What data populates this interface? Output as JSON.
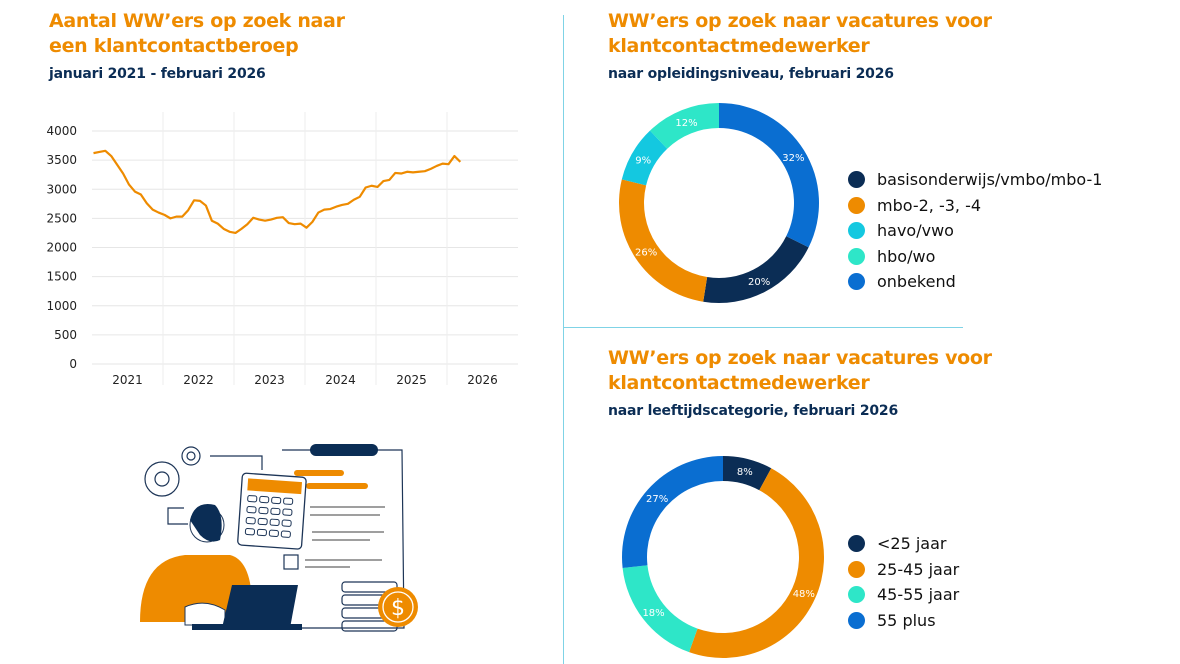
{
  "colors": {
    "orange": "#EE8B00",
    "navy": "#0B2D55",
    "blue": "#0A6ED1",
    "cyan": "#14C8E0",
    "teal": "#2EE6C8"
  },
  "left": {
    "title_line1": "Aantal WW’ers op zoek naar",
    "title_line2": "een klantcontactberoep",
    "subtitle": "januari 2021 - februari 2026"
  },
  "right_top": {
    "title_line1": "WW’ers op zoek naar vacatures voor",
    "title_line2": "klantcontactmedewerker",
    "subtitle": "naar opleidingsniveau, februari 2026"
  },
  "right_bottom": {
    "title_line1": "WW’ers op zoek naar vacatures voor",
    "title_line2": "klantcontactmedewerker",
    "subtitle": "naar leeftijdscategorie, februari 2026"
  },
  "illustration": "person-with-calculator-laptop-document-coins",
  "chart_data": [
    {
      "type": "line",
      "title": "Aantal WW’ers op zoek naar een klantcontactberoep",
      "x_start": "2021-01",
      "x_step": "month",
      "ylim": [
        0,
        4000
      ],
      "yticks": [
        0,
        500,
        1000,
        1500,
        2000,
        2500,
        3000,
        3500,
        4000
      ],
      "xticks": [
        "2021",
        "2022",
        "2023",
        "2024",
        "2025",
        "2026"
      ],
      "grid": true,
      "color": "#EE8B00",
      "values": [
        3620,
        3640,
        3660,
        3570,
        3420,
        3270,
        3080,
        2960,
        2910,
        2760,
        2650,
        2600,
        2560,
        2500,
        2530,
        2530,
        2640,
        2810,
        2800,
        2720,
        2460,
        2410,
        2320,
        2270,
        2250,
        2320,
        2400,
        2510,
        2480,
        2460,
        2480,
        2510,
        2520,
        2420,
        2400,
        2410,
        2340,
        2440,
        2600,
        2650,
        2660,
        2700,
        2730,
        2750,
        2820,
        2870,
        3030,
        3060,
        3040,
        3140,
        3160,
        3280,
        3270,
        3300,
        3290,
        3300,
        3310,
        3350,
        3400,
        3440,
        3430,
        3570,
        3470
      ]
    },
    {
      "type": "pie",
      "donut": true,
      "title": "naar opleidingsniveau, februari 2026",
      "legend": "right",
      "slices": [
        {
          "label": "basisonderwijs/vmbo/mbo-1",
          "value": 20,
          "text": "20%",
          "color": "#0B2D55"
        },
        {
          "label": "mbo-2, -3, -4",
          "value": 26,
          "text": "26%",
          "color": "#EE8B00"
        },
        {
          "label": "havo/vwo",
          "value": 9,
          "text": "9%",
          "color": "#14C8E0"
        },
        {
          "label": "hbo/wo",
          "value": 12,
          "text": "12%",
          "color": "#2EE6C8"
        },
        {
          "label": "onbekend",
          "value": 32,
          "text": "32%",
          "color": "#0A6ED1"
        }
      ],
      "draw_order_clockwise_from_top": [
        4,
        0,
        1,
        2,
        3
      ]
    },
    {
      "type": "pie",
      "donut": true,
      "title": "naar leeftijdscategorie, februari 2026",
      "legend": "right",
      "slices": [
        {
          "label": "<25 jaar",
          "value": 8,
          "text": "8%",
          "color": "#0B2D55"
        },
        {
          "label": "25-45 jaar",
          "value": 48,
          "text": "48%",
          "color": "#EE8B00"
        },
        {
          "label": "45-55 jaar",
          "value": 18,
          "text": "18%",
          "color": "#2EE6C8"
        },
        {
          "label": "55 plus",
          "value": 27,
          "text": "27%",
          "color": "#0A6ED1"
        }
      ],
      "draw_order_clockwise_from_top": [
        0,
        1,
        2,
        3
      ]
    }
  ]
}
